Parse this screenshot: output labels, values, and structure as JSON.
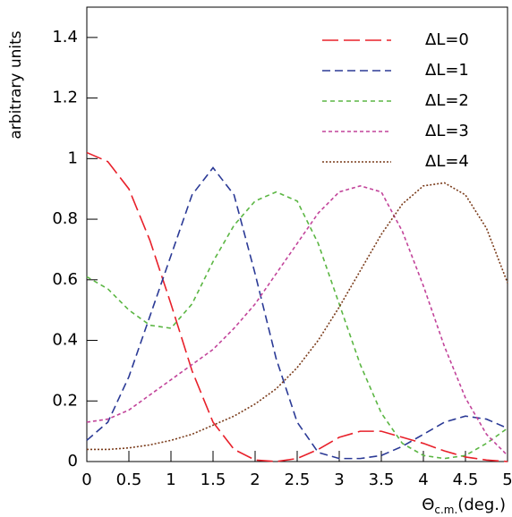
{
  "chart_data": {
    "type": "line",
    "ylabel": "arbitrary units",
    "xlabel": "Θ",
    "xlabel_subscript": "c.m.",
    "xlabel_suffix": "(deg.)",
    "x": [
      0,
      0.25,
      0.5,
      0.75,
      1,
      1.25,
      1.5,
      1.75,
      2,
      2.25,
      2.5,
      2.75,
      3,
      3.25,
      3.5,
      3.75,
      4,
      4.25,
      4.5,
      4.75,
      5
    ],
    "series": [
      {
        "name": "ΔL=0",
        "color": "#e8202a",
        "dash": "18,6",
        "values": [
          1.02,
          0.99,
          0.9,
          0.73,
          0.52,
          0.3,
          0.13,
          0.04,
          0.005,
          0.0,
          0.01,
          0.04,
          0.08,
          0.1,
          0.1,
          0.08,
          0.06,
          0.035,
          0.015,
          0.005,
          0.0
        ]
      },
      {
        "name": "ΔL=1",
        "color": "#2b3a96",
        "dash": "9,5",
        "values": [
          0.07,
          0.13,
          0.28,
          0.48,
          0.68,
          0.88,
          0.97,
          0.88,
          0.62,
          0.34,
          0.13,
          0.03,
          0.01,
          0.01,
          0.02,
          0.05,
          0.09,
          0.13,
          0.15,
          0.14,
          0.11
        ]
      },
      {
        "name": "ΔL=2",
        "color": "#5bb643",
        "dash": "5,4",
        "values": [
          0.61,
          0.57,
          0.5,
          0.45,
          0.44,
          0.52,
          0.66,
          0.78,
          0.86,
          0.89,
          0.86,
          0.72,
          0.52,
          0.32,
          0.16,
          0.06,
          0.02,
          0.01,
          0.02,
          0.06,
          0.11
        ]
      },
      {
        "name": "ΔL=3",
        "color": "#c2449a",
        "dash": "4,3",
        "values": [
          0.13,
          0.14,
          0.17,
          0.22,
          0.27,
          0.32,
          0.37,
          0.44,
          0.52,
          0.62,
          0.72,
          0.82,
          0.89,
          0.91,
          0.89,
          0.76,
          0.58,
          0.38,
          0.21,
          0.09,
          0.02
        ]
      },
      {
        "name": "ΔL=4",
        "color": "#7a3b1a",
        "dash": "2,2",
        "values": [
          0.04,
          0.04,
          0.045,
          0.055,
          0.07,
          0.09,
          0.12,
          0.15,
          0.19,
          0.24,
          0.31,
          0.4,
          0.51,
          0.63,
          0.75,
          0.85,
          0.91,
          0.92,
          0.88,
          0.77,
          0.59
        ]
      }
    ],
    "xlim": [
      0,
      5
    ],
    "xticks": [
      0,
      0.5,
      1,
      1.5,
      2,
      2.5,
      3,
      3.5,
      4,
      4.5,
      5
    ],
    "ylim": [
      0,
      1.5
    ],
    "yticks": [
      0,
      0.2,
      0.4,
      0.6,
      0.8,
      1,
      1.2,
      1.4
    ],
    "legend": "upper-right"
  }
}
